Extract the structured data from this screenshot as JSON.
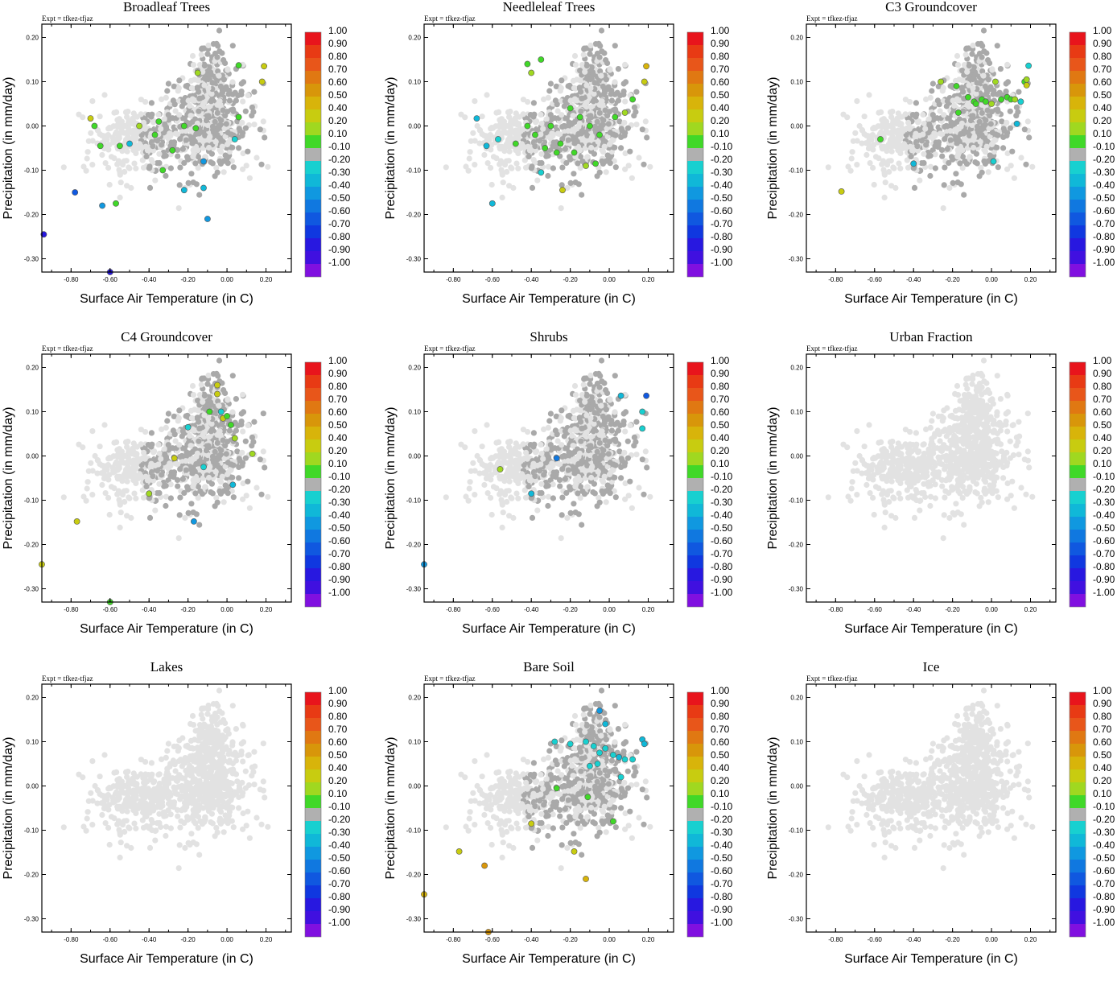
{
  "figure": {
    "expt_label": "Expt = tfkez-tfjaz",
    "xlabel": "Surface Air Temperature (in C)",
    "ylabel": "Precipitation (in mm/day)",
    "colorbar_labels": [
      "1.00",
      "0.90",
      "0.80",
      "0.70",
      "0.60",
      "0.50",
      "0.40",
      "0.20",
      "0.10",
      "-0.10",
      "-0.20",
      "-0.30",
      "-0.40",
      "-0.50",
      "-0.60",
      "-0.70",
      "-0.80",
      "-0.90",
      "-1.00"
    ],
    "colorbar_colors": [
      "#e8141c",
      "#e83a14",
      "#e8561a",
      "#e07812",
      "#d8960a",
      "#d8b40a",
      "#c8cc10",
      "#a0d820",
      "#40d828",
      "#b0b0b0",
      "#18d0d0",
      "#10b8d8",
      "#1098e0",
      "#1078e0",
      "#1058e0",
      "#1038e0",
      "#2818e0",
      "#4010e0",
      "#8010e0"
    ]
  },
  "chart_data": [
    {
      "type": "scatter",
      "title": "Broadleaf Trees",
      "xlim": [
        -0.95,
        0.33
      ],
      "ylim": [
        -0.33,
        0.23
      ],
      "xticks": [
        "-0.80",
        "-0.60",
        "-0.40",
        "-0.20",
        "0.00",
        "0.20"
      ],
      "yticks": [
        "0.20",
        "0.10",
        "0.00",
        "-0.10",
        "-0.20",
        "-0.30"
      ],
      "active": true,
      "highlight": [
        [
          -0.78,
          -0.15,
          "-0.60"
        ],
        [
          -0.64,
          -0.18,
          "-0.40"
        ],
        [
          -0.6,
          -0.33,
          "-0.80"
        ],
        [
          -0.94,
          -0.245,
          "-0.80"
        ],
        [
          -0.57,
          -0.175,
          "0.10"
        ],
        [
          -0.7,
          0.017,
          "0.40"
        ],
        [
          -0.65,
          -0.045,
          "0.10"
        ],
        [
          -0.55,
          -0.045,
          "0.10"
        ],
        [
          -0.5,
          -0.04,
          "-0.30"
        ],
        [
          -0.45,
          0.0,
          "0.20"
        ],
        [
          -0.37,
          -0.02,
          "0.10"
        ],
        [
          -0.35,
          0.01,
          "0.10"
        ],
        [
          -0.33,
          -0.1,
          "0.10"
        ],
        [
          -0.28,
          -0.055,
          "0.10"
        ],
        [
          -0.22,
          0.0,
          "0.10"
        ],
        [
          -0.16,
          -0.005,
          "0.10"
        ],
        [
          -0.15,
          0.12,
          "0.20"
        ],
        [
          -0.12,
          -0.08,
          "-0.40"
        ],
        [
          -0.12,
          -0.14,
          "-0.30"
        ],
        [
          -0.1,
          -0.21,
          "-0.40"
        ],
        [
          -0.22,
          -0.145,
          "-0.30"
        ],
        [
          0.06,
          0.137,
          "0.10"
        ],
        [
          0.19,
          0.135,
          "0.40"
        ],
        [
          0.18,
          0.1,
          "0.40"
        ],
        [
          0.06,
          0.02,
          "0.10"
        ],
        [
          0.04,
          -0.03,
          "-0.20"
        ],
        [
          -0.68,
          0.0,
          "0.10"
        ]
      ]
    },
    {
      "type": "scatter",
      "title": "Needleleaf Trees",
      "xlim": [
        -0.95,
        0.33
      ],
      "ylim": [
        -0.33,
        0.23
      ],
      "xticks": [
        "-0.80",
        "-0.60",
        "-0.40",
        "-0.20",
        "0.00",
        "0.20"
      ],
      "yticks": [
        "0.20",
        "0.10",
        "0.00",
        "-0.10",
        "-0.20",
        "-0.30"
      ],
      "active": true,
      "highlight": [
        [
          -0.42,
          0.14,
          "0.10"
        ],
        [
          -0.35,
          0.15,
          "0.10"
        ],
        [
          -0.68,
          0.017,
          "-0.30"
        ],
        [
          -0.63,
          -0.045,
          "-0.30"
        ],
        [
          -0.57,
          -0.03,
          "-0.20"
        ],
        [
          -0.6,
          -0.175,
          "-0.30"
        ],
        [
          -0.35,
          -0.105,
          "-0.20"
        ],
        [
          -0.24,
          -0.145,
          "0.40"
        ],
        [
          -0.42,
          0.0,
          "0.10"
        ],
        [
          -0.38,
          -0.02,
          "0.10"
        ],
        [
          -0.33,
          -0.05,
          "0.10"
        ],
        [
          -0.27,
          -0.06,
          "0.10"
        ],
        [
          -0.2,
          0.04,
          "0.10"
        ],
        [
          -0.15,
          0.02,
          "0.10"
        ],
        [
          -0.1,
          0.0,
          "0.10"
        ],
        [
          -0.05,
          -0.02,
          "0.10"
        ],
        [
          -0.12,
          -0.09,
          "0.20"
        ],
        [
          -0.07,
          -0.085,
          "0.10"
        ],
        [
          0.03,
          0.02,
          "0.10"
        ],
        [
          0.08,
          0.03,
          "0.20"
        ],
        [
          0.12,
          0.06,
          "0.10"
        ],
        [
          0.19,
          0.135,
          "0.50"
        ],
        [
          0.18,
          0.1,
          "0.40"
        ],
        [
          -0.3,
          0.0,
          "0.10"
        ],
        [
          -0.25,
          -0.04,
          "0.10"
        ],
        [
          -0.18,
          -0.06,
          "0.10"
        ],
        [
          -0.4,
          0.12,
          "0.20"
        ],
        [
          -0.48,
          -0.04,
          "0.10"
        ]
      ]
    },
    {
      "type": "scatter",
      "title": "C3 Groundcover",
      "xlim": [
        -0.95,
        0.33
      ],
      "ylim": [
        -0.33,
        0.23
      ],
      "xticks": [
        "-0.80",
        "-0.60",
        "-0.40",
        "-0.20",
        "0.00",
        "0.20"
      ],
      "yticks": [
        "0.20",
        "0.10",
        "0.00",
        "-0.10",
        "-0.20",
        "-0.30"
      ],
      "active": true,
      "highlight": [
        [
          -0.77,
          -0.148,
          "0.40"
        ],
        [
          -0.57,
          -0.03,
          "0.10"
        ],
        [
          -0.4,
          -0.085,
          "-0.30"
        ],
        [
          -0.26,
          0.1,
          "0.20"
        ],
        [
          -0.18,
          0.09,
          "0.10"
        ],
        [
          -0.17,
          0.03,
          "0.10"
        ],
        [
          -0.09,
          0.055,
          "0.10"
        ],
        [
          -0.08,
          0.05,
          "0.10"
        ],
        [
          -0.05,
          0.06,
          "0.10"
        ],
        [
          0.0,
          0.05,
          "0.20"
        ],
        [
          0.02,
          0.1,
          "0.20"
        ],
        [
          0.05,
          0.06,
          "0.10"
        ],
        [
          0.08,
          0.065,
          "0.10"
        ],
        [
          0.1,
          0.06,
          "0.10"
        ],
        [
          0.12,
          0.06,
          "0.20"
        ],
        [
          0.15,
          0.055,
          "-0.20"
        ],
        [
          0.17,
          0.1,
          "0.10"
        ],
        [
          0.18,
          0.105,
          "0.20"
        ],
        [
          0.18,
          0.092,
          "0.40"
        ],
        [
          0.19,
          0.136,
          "-0.20"
        ],
        [
          0.13,
          0.005,
          "-0.30"
        ],
        [
          0.01,
          -0.08,
          "-0.20"
        ],
        [
          -0.03,
          0.055,
          "0.10"
        ],
        [
          -0.12,
          0.065,
          "0.10"
        ]
      ]
    },
    {
      "type": "scatter",
      "title": "C4 Groundcover",
      "xlim": [
        -0.95,
        0.33
      ],
      "ylim": [
        -0.33,
        0.23
      ],
      "xticks": [
        "-0.80",
        "-0.60",
        "-0.40",
        "-0.20",
        "0.00",
        "0.20"
      ],
      "yticks": [
        "0.20",
        "0.10",
        "0.00",
        "-0.10",
        "-0.20",
        "-0.30"
      ],
      "active": true,
      "highlight": [
        [
          -0.95,
          -0.245,
          "0.40"
        ],
        [
          -0.77,
          -0.148,
          "0.40"
        ],
        [
          -0.6,
          -0.33,
          "0.10"
        ],
        [
          -0.4,
          -0.085,
          "0.20"
        ],
        [
          -0.27,
          -0.005,
          "0.40"
        ],
        [
          -0.2,
          0.065,
          "-0.20"
        ],
        [
          -0.17,
          -0.148,
          "-0.40"
        ],
        [
          -0.12,
          -0.025,
          "-0.20"
        ],
        [
          -0.05,
          0.16,
          "0.40"
        ],
        [
          -0.05,
          0.14,
          "0.40"
        ],
        [
          -0.09,
          0.1,
          "0.10"
        ],
        [
          -0.03,
          0.1,
          "-0.20"
        ],
        [
          -0.02,
          0.085,
          "0.40"
        ],
        [
          0.02,
          0.07,
          "0.10"
        ],
        [
          0.04,
          0.04,
          "0.20"
        ],
        [
          0.03,
          -0.065,
          "-0.30"
        ],
        [
          0.13,
          0.005,
          "0.20"
        ],
        [
          0.0,
          0.09,
          "0.10"
        ]
      ]
    },
    {
      "type": "scatter",
      "title": "Shrubs",
      "xlim": [
        -0.95,
        0.33
      ],
      "ylim": [
        -0.33,
        0.23
      ],
      "xticks": [
        "-0.80",
        "-0.60",
        "-0.40",
        "-0.20",
        "0.00",
        "0.20"
      ],
      "yticks": [
        "0.20",
        "0.10",
        "0.00",
        "-0.10",
        "-0.20",
        "-0.30"
      ],
      "active": true,
      "highlight": [
        [
          -0.95,
          -0.245,
          "-0.40"
        ],
        [
          -0.56,
          -0.03,
          "0.20"
        ],
        [
          -0.4,
          -0.085,
          "-0.30"
        ],
        [
          -0.27,
          -0.005,
          "-0.50"
        ],
        [
          0.06,
          0.136,
          "-0.30"
        ],
        [
          0.19,
          0.136,
          "-0.60"
        ],
        [
          0.17,
          0.1,
          "-0.20"
        ],
        [
          0.17,
          0.062,
          "-0.20"
        ]
      ]
    },
    {
      "type": "scatter",
      "title": "Urban Fraction",
      "xlim": [
        -0.95,
        0.33
      ],
      "ylim": [
        -0.33,
        0.23
      ],
      "xticks": [
        "-0.80",
        "-0.60",
        "-0.40",
        "-0.20",
        "0.00",
        "0.20"
      ],
      "yticks": [
        "0.20",
        "0.10",
        "0.00",
        "-0.10",
        "-0.20",
        "-0.30"
      ],
      "active": false,
      "highlight": []
    },
    {
      "type": "scatter",
      "title": "Lakes",
      "xlim": [
        -0.95,
        0.33
      ],
      "ylim": [
        -0.33,
        0.23
      ],
      "xticks": [
        "-0.80",
        "-0.60",
        "-0.40",
        "-0.20",
        "0.00",
        "0.20"
      ],
      "yticks": [
        "0.20",
        "0.10",
        "0.00",
        "-0.10",
        "-0.20",
        "-0.30"
      ],
      "active": false,
      "highlight": []
    },
    {
      "type": "scatter",
      "title": "Bare Soil",
      "xlim": [
        -0.95,
        0.33
      ],
      "ylim": [
        -0.33,
        0.23
      ],
      "xticks": [
        "-0.80",
        "-0.60",
        "-0.40",
        "-0.20",
        "0.00",
        "0.20"
      ],
      "yticks": [
        "0.20",
        "0.10",
        "0.00",
        "-0.10",
        "-0.20",
        "-0.30"
      ],
      "active": true,
      "highlight": [
        [
          -0.95,
          -0.245,
          "0.50"
        ],
        [
          -0.77,
          -0.148,
          "0.40"
        ],
        [
          -0.64,
          -0.18,
          "0.60"
        ],
        [
          -0.62,
          -0.33,
          "0.60"
        ],
        [
          -0.4,
          -0.085,
          "0.40"
        ],
        [
          -0.27,
          -0.005,
          "0.10"
        ],
        [
          -0.18,
          -0.148,
          "0.40"
        ],
        [
          -0.12,
          -0.21,
          "0.50"
        ],
        [
          -0.11,
          -0.025,
          "0.10"
        ],
        [
          0.02,
          -0.08,
          "0.10"
        ],
        [
          -0.28,
          0.1,
          "-0.20"
        ],
        [
          -0.2,
          0.095,
          "-0.20"
        ],
        [
          -0.12,
          0.1,
          "-0.20"
        ],
        [
          -0.08,
          0.09,
          "-0.20"
        ],
        [
          -0.05,
          0.075,
          "-0.20"
        ],
        [
          -0.02,
          0.085,
          "-0.20"
        ],
        [
          0.02,
          0.07,
          "-0.20"
        ],
        [
          0.05,
          0.065,
          "-0.30"
        ],
        [
          0.08,
          0.06,
          "-0.20"
        ],
        [
          0.12,
          0.06,
          "-0.20"
        ],
        [
          0.17,
          0.105,
          "-0.30"
        ],
        [
          0.18,
          0.095,
          "-0.30"
        ],
        [
          -0.05,
          0.17,
          "-0.40"
        ],
        [
          -0.02,
          0.14,
          "-0.30"
        ],
        [
          -0.1,
          0.045,
          "-0.20"
        ],
        [
          0.06,
          0.02,
          "-0.20"
        ],
        [
          -0.06,
          0.05,
          "-0.20"
        ]
      ]
    },
    {
      "type": "scatter",
      "title": "Ice",
      "xlim": [
        -0.95,
        0.33
      ],
      "ylim": [
        -0.33,
        0.23
      ],
      "xticks": [
        "-0.80",
        "-0.60",
        "-0.40",
        "-0.20",
        "0.00",
        "0.20"
      ],
      "yticks": [
        "0.20",
        "0.10",
        "0.00",
        "-0.10",
        "-0.20",
        "-0.30"
      ],
      "active": false,
      "highlight": []
    }
  ]
}
